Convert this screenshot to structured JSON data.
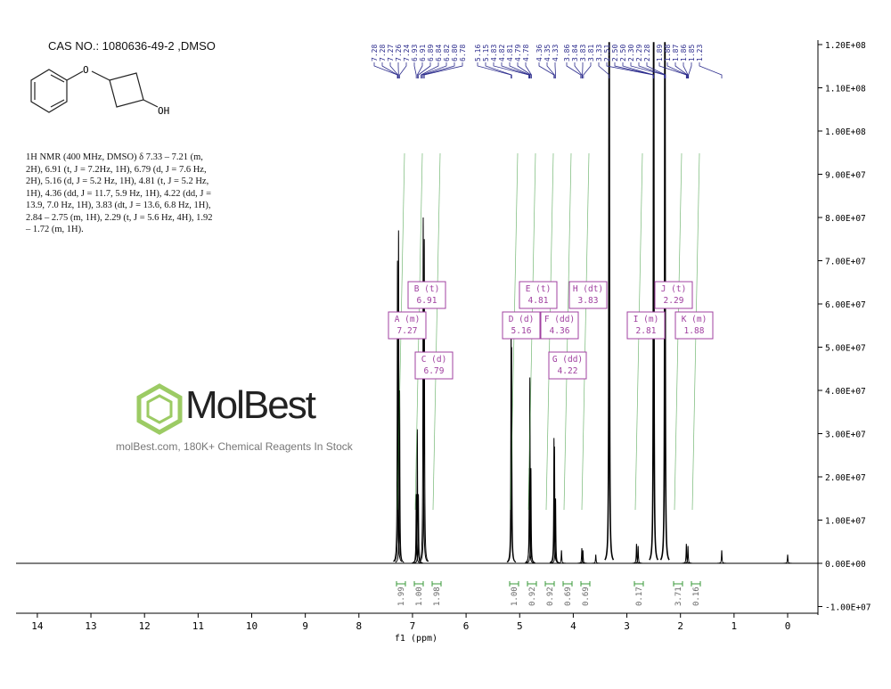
{
  "header": {
    "title": "CAS NO.: 1080636-49-2  ,DMSO"
  },
  "structure": {
    "atom_labels": [
      "O",
      "OH"
    ]
  },
  "nmr_description": "1H NMR (400 MHz, DMSO) δ 7.33 – 7.21 (m, 2H), 6.91 (t, J = 7.2Hz, 1H), 6.79 (d, J = 7.6 Hz, 2H), 5.16 (d, J = 5.2 Hz, 1H), 4.81 (t, J = 5.2 Hz, 1H), 4.36 (dd, J = 11.7, 5.9 Hz, 1H), 4.22 (dd, J = 13.9, 7.0 Hz, 1H), 3.83 (dt, J = 13.6, 6.8 Hz, 1H), 2.84 – 2.75 (m, 1H), 2.29 (t, J = 5.6 Hz, 4H), 1.92 – 1.72 (m, 1H).",
  "watermark": {
    "logo": "MolBest",
    "tagline": "molBest.com, 180K+ Chemical Reagents In Stock"
  },
  "chart_data": {
    "type": "line",
    "xlabel": "f1 (ppm)",
    "xlim": [
      14.5,
      -0.5
    ],
    "x_ticks": [
      "14",
      "13",
      "12",
      "11",
      "10",
      "9",
      "8",
      "7",
      "6",
      "5",
      "4",
      "3",
      "2",
      "1",
      "0"
    ],
    "ylim": [
      -12000000.0,
      120000000.0
    ],
    "y_ticks": [
      "1.20E+08",
      "1.10E+08",
      "1.00E+08",
      "9.00E+07",
      "8.00E+07",
      "7.00E+07",
      "6.00E+07",
      "5.00E+07",
      "4.00E+07",
      "3.00E+07",
      "2.00E+07",
      "1.00E+07",
      "0.00E+00",
      "-1.00E+07"
    ],
    "line_color": "#000000",
    "peaks": [
      {
        "ppm": 7.28,
        "intensity": 70000000.0
      },
      {
        "ppm": 7.26,
        "intensity": 77000000.0
      },
      {
        "ppm": 7.24,
        "intensity": 40000000.0
      },
      {
        "ppm": 6.93,
        "intensity": 16000000.0
      },
      {
        "ppm": 6.91,
        "intensity": 31000000.0
      },
      {
        "ppm": 6.89,
        "intensity": 16000000.0
      },
      {
        "ppm": 6.8,
        "intensity": 80000000.0
      },
      {
        "ppm": 6.78,
        "intensity": 75000000.0
      },
      {
        "ppm": 5.16,
        "intensity": 55000000.0
      },
      {
        "ppm": 5.15,
        "intensity": 50000000.0
      },
      {
        "ppm": 4.82,
        "intensity": 22000000.0
      },
      {
        "ppm": 4.81,
        "intensity": 43000000.0
      },
      {
        "ppm": 4.79,
        "intensity": 22000000.0
      },
      {
        "ppm": 4.36,
        "intensity": 29000000.0
      },
      {
        "ppm": 4.35,
        "intensity": 27000000.0
      },
      {
        "ppm": 4.33,
        "intensity": 15000000.0
      },
      {
        "ppm": 4.22,
        "intensity": 3000000.0
      },
      {
        "ppm": 3.84,
        "intensity": 3500000.0
      },
      {
        "ppm": 3.82,
        "intensity": 3000000.0
      },
      {
        "ppm": 3.58,
        "intensity": 2000000.0
      },
      {
        "ppm": 3.33,
        "intensity": 140000000.0
      },
      {
        "ppm": 2.82,
        "intensity": 4500000.0
      },
      {
        "ppm": 2.79,
        "intensity": 4000000.0
      },
      {
        "ppm": 2.5,
        "intensity": 140000000.0
      },
      {
        "ppm": 2.29,
        "intensity": 140000000.0
      },
      {
        "ppm": 1.89,
        "intensity": 4500000.0
      },
      {
        "ppm": 1.86,
        "intensity": 4000000.0
      },
      {
        "ppm": 1.23,
        "intensity": 3000000.0
      },
      {
        "ppm": 0.0,
        "intensity": 2000000.0
      }
    ],
    "peak_label_groups": [
      [
        "7.28",
        "7.28",
        "7.27",
        "7.26",
        "7.24",
        "6.93",
        "6.91",
        "6.89",
        "6.84",
        "6.82",
        "6.80",
        "6.78"
      ],
      [
        "5.16",
        "5.15",
        "4.83",
        "4.82",
        "4.81",
        "4.79",
        "4.78"
      ],
      [
        "4.36",
        "4.35",
        "4.33"
      ],
      [
        "3.86",
        "3.84",
        "3.83",
        "3.81",
        "3.33",
        "2.51",
        "2.50",
        "2.50",
        "2.30",
        "2.29",
        "2.28"
      ],
      [
        "1.89",
        "1.88",
        "1.87",
        "1.86",
        "1.85",
        "1.23"
      ]
    ],
    "integrals": [
      {
        "ppm": 7.27,
        "value": "1.99"
      },
      {
        "ppm": 6.91,
        "value": "1.00"
      },
      {
        "ppm": 6.79,
        "value": "1.98"
      },
      {
        "ppm": 5.16,
        "value": "1.00"
      },
      {
        "ppm": 4.81,
        "value": "0.92"
      },
      {
        "ppm": 4.36,
        "value": "0.92"
      },
      {
        "ppm": 4.22,
        "value": "0.69"
      },
      {
        "ppm": 3.83,
        "value": "0.69"
      },
      {
        "ppm": 2.81,
        "value": "0.17"
      },
      {
        "ppm": 2.29,
        "value": "3.71"
      },
      {
        "ppm": 1.88,
        "value": "0.16"
      }
    ],
    "multiplets": [
      {
        "label": "A (m)",
        "shift": "7.27"
      },
      {
        "label": "B (t)",
        "shift": "6.91"
      },
      {
        "label": "C (d)",
        "shift": "6.79"
      },
      {
        "label": "D (d)",
        "shift": "5.16"
      },
      {
        "label": "E (t)",
        "shift": "4.81"
      },
      {
        "label": "F (dd)",
        "shift": "4.36"
      },
      {
        "label": "G (dd)",
        "shift": "4.22"
      },
      {
        "label": "H (dt)",
        "shift": "3.83"
      },
      {
        "label": "I (m)",
        "shift": "2.81"
      },
      {
        "label": "J (t)",
        "shift": "2.29"
      },
      {
        "label": "K (m)",
        "shift": "1.88"
      }
    ],
    "colors": {
      "peak_labels": "#2b2b8c",
      "integrals": "#3a9a3a",
      "multiplets": "#a040a0"
    }
  }
}
